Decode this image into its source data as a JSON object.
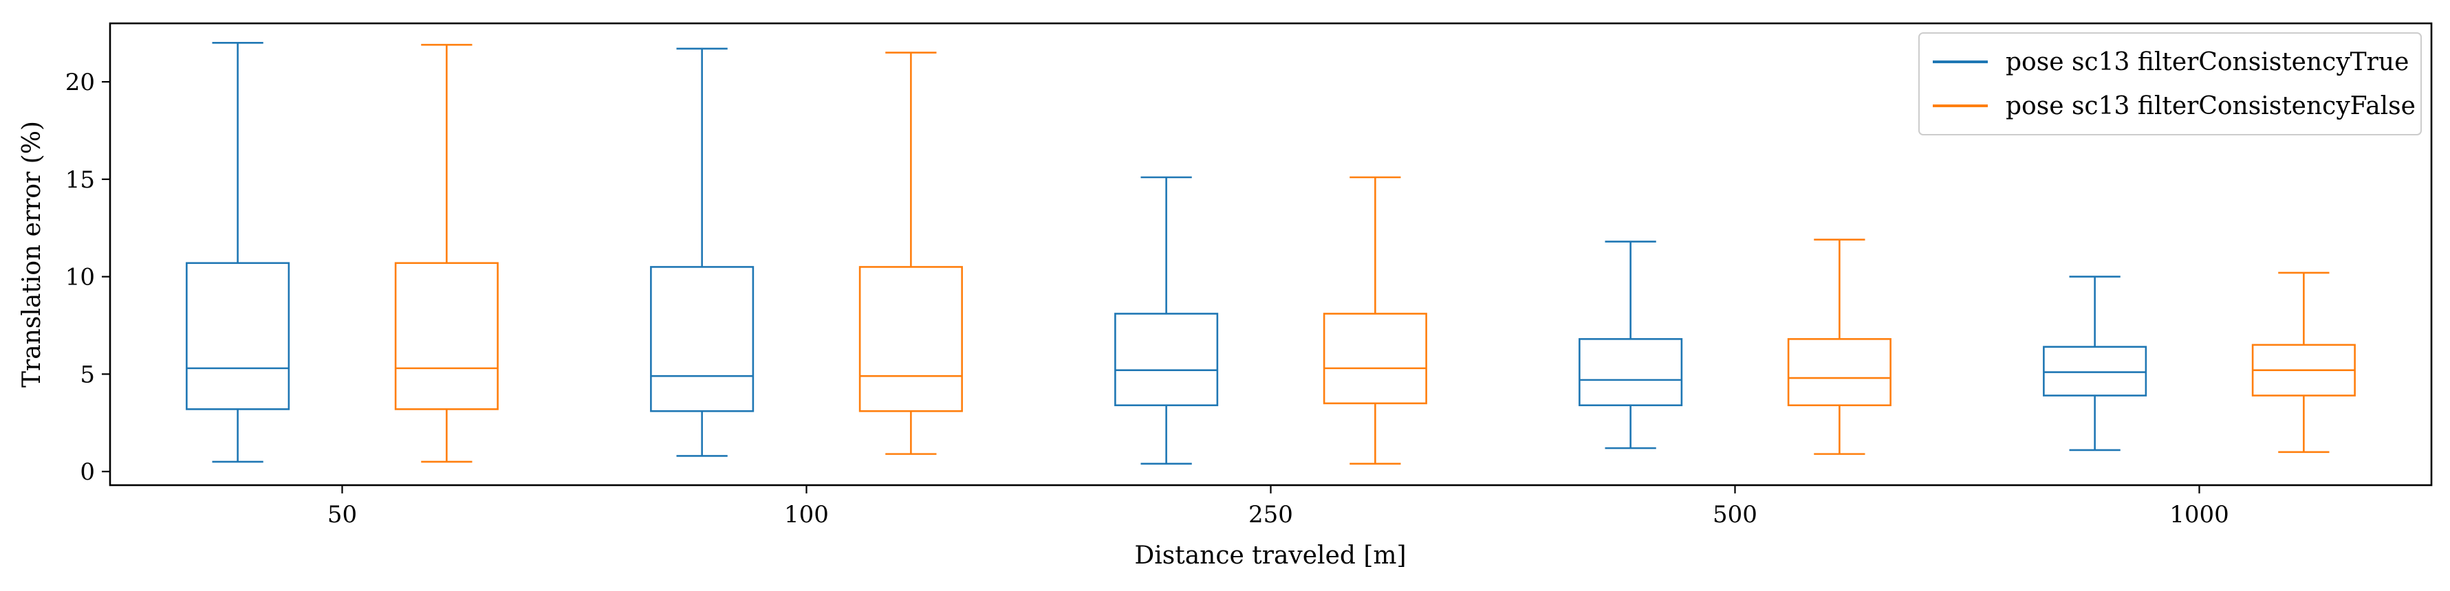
{
  "chart_data": {
    "type": "box",
    "title": "",
    "xlabel": "Distance traveled [m]",
    "ylabel": "Translation error (%)",
    "ylim": [
      -0.7,
      23.0
    ],
    "yticks": [
      0,
      5,
      10,
      15,
      20
    ],
    "grid": false,
    "legend_position": "top-right",
    "categories": [
      "50",
      "100",
      "250",
      "500",
      "1000"
    ],
    "series": [
      {
        "name": "pose sc13 filterConsistencyTrue",
        "color": "#1f77b4",
        "boxes": [
          {
            "whislo": 0.5,
            "q1": 3.2,
            "med": 5.3,
            "q3": 10.7,
            "whishi": 22.0
          },
          {
            "whislo": 0.8,
            "q1": 3.1,
            "med": 4.9,
            "q3": 10.5,
            "whishi": 21.7
          },
          {
            "whislo": 0.4,
            "q1": 3.4,
            "med": 5.2,
            "q3": 8.1,
            "whishi": 15.1
          },
          {
            "whislo": 1.2,
            "q1": 3.4,
            "med": 4.7,
            "q3": 6.8,
            "whishi": 11.8
          },
          {
            "whislo": 1.1,
            "q1": 3.9,
            "med": 5.1,
            "q3": 6.4,
            "whishi": 10.0
          }
        ]
      },
      {
        "name": "pose sc13 filterConsistencyFalse",
        "color": "#ff7f0e",
        "boxes": [
          {
            "whislo": 0.5,
            "q1": 3.2,
            "med": 5.3,
            "q3": 10.7,
            "whishi": 21.9
          },
          {
            "whislo": 0.9,
            "q1": 3.1,
            "med": 4.9,
            "q3": 10.5,
            "whishi": 21.5
          },
          {
            "whislo": 0.4,
            "q1": 3.5,
            "med": 5.3,
            "q3": 8.1,
            "whishi": 15.1
          },
          {
            "whislo": 0.9,
            "q1": 3.4,
            "med": 4.8,
            "q3": 6.8,
            "whishi": 11.9
          },
          {
            "whislo": 1.0,
            "q1": 3.9,
            "med": 5.2,
            "q3": 6.5,
            "whishi": 10.2
          }
        ]
      }
    ]
  }
}
